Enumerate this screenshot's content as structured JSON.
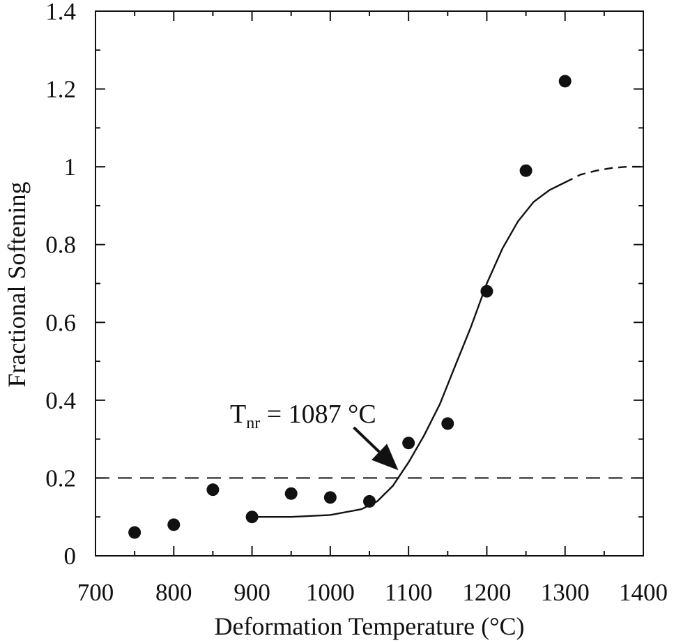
{
  "chart_data": {
    "type": "scatter",
    "xlabel": "Deformation Temperature (°C)",
    "ylabel": "Fractional Softening",
    "xlim": [
      700,
      1400
    ],
    "ylim": [
      0,
      1.4
    ],
    "x_ticks": [
      "700",
      "800",
      "900",
      "1000",
      "1100",
      "1200",
      "1300",
      "1400"
    ],
    "y_ticks": [
      "0",
      "0.2",
      "0.4",
      "0.6",
      "0.8",
      "1",
      "1.2",
      "1.4"
    ],
    "grid": false,
    "series": [
      {
        "kind": "points",
        "points": [
          {
            "x": 750,
            "y": 0.06
          },
          {
            "x": 800,
            "y": 0.08
          },
          {
            "x": 850,
            "y": 0.17
          },
          {
            "x": 900,
            "y": 0.1
          },
          {
            "x": 950,
            "y": 0.16
          },
          {
            "x": 1000,
            "y": 0.15
          },
          {
            "x": 1050,
            "y": 0.14
          },
          {
            "x": 1100,
            "y": 0.29
          },
          {
            "x": 1150,
            "y": 0.34
          },
          {
            "x": 1200,
            "y": 0.68
          },
          {
            "x": 1250,
            "y": 0.99
          },
          {
            "x": 1300,
            "y": 1.22
          }
        ]
      },
      {
        "kind": "fit-curve-solid",
        "points": [
          {
            "x": 900,
            "y": 0.1
          },
          {
            "x": 950,
            "y": 0.1
          },
          {
            "x": 1000,
            "y": 0.105
          },
          {
            "x": 1040,
            "y": 0.12
          },
          {
            "x": 1060,
            "y": 0.14
          },
          {
            "x": 1080,
            "y": 0.18
          },
          {
            "x": 1100,
            "y": 0.24
          },
          {
            "x": 1120,
            "y": 0.31
          },
          {
            "x": 1140,
            "y": 0.39
          },
          {
            "x": 1160,
            "y": 0.49
          },
          {
            "x": 1180,
            "y": 0.59
          },
          {
            "x": 1200,
            "y": 0.7
          },
          {
            "x": 1220,
            "y": 0.79
          },
          {
            "x": 1240,
            "y": 0.86
          },
          {
            "x": 1260,
            "y": 0.91
          },
          {
            "x": 1280,
            "y": 0.94
          },
          {
            "x": 1300,
            "y": 0.96
          }
        ]
      },
      {
        "kind": "fit-curve-dashed",
        "points": [
          {
            "x": 1300,
            "y": 0.96
          },
          {
            "x": 1320,
            "y": 0.98
          },
          {
            "x": 1340,
            "y": 0.99
          },
          {
            "x": 1360,
            "y": 0.997
          },
          {
            "x": 1380,
            "y": 1.0
          },
          {
            "x": 1400,
            "y": 1.0
          }
        ]
      },
      {
        "kind": "threshold-dashed",
        "y": 0.2,
        "x": [
          700,
          1400
        ]
      }
    ],
    "annotation": {
      "main": "T",
      "subscript": "nr",
      "rest": " = 1087 °C",
      "arrow_from": {
        "x": 1030,
        "y": 0.33
      },
      "arrow_to": {
        "x": 1087,
        "y": 0.22
      }
    }
  }
}
